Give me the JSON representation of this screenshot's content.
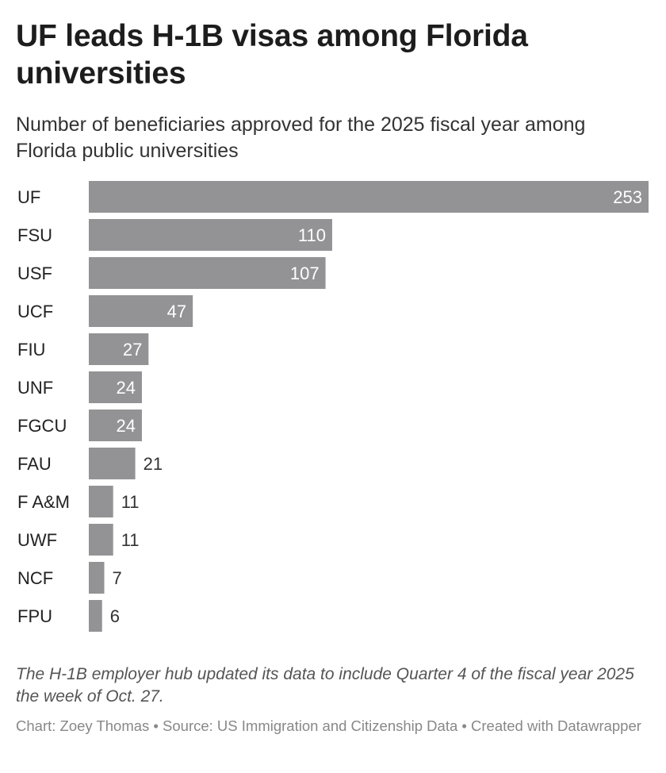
{
  "header": {
    "title": "UF leads H-1B visas among Florida universities",
    "subtitle": "Number of beneficiaries approved for the 2025 fiscal year among Florida public universities"
  },
  "chart_data": {
    "type": "bar",
    "orientation": "horizontal",
    "categories": [
      "UF",
      "FSU",
      "USF",
      "UCF",
      "FIU",
      "UNF",
      "FGCU",
      "FAU",
      "F A&M",
      "UWF",
      "NCF",
      "FPU"
    ],
    "values": [
      253,
      110,
      107,
      47,
      27,
      24,
      24,
      21,
      11,
      11,
      7,
      6
    ],
    "title": "UF leads H-1B visas among Florida universities",
    "subtitle": "Number of beneficiaries approved for the 2025 fiscal year among Florida public universities",
    "xlim": [
      0,
      253
    ],
    "grid": false,
    "legend": "none",
    "bar_color": "#939395",
    "label_inside_color": "#ffffff",
    "label_outside_color": "#333333"
  },
  "notes": {
    "note": "The H-1B employer hub updated its data to include Quarter 4 of the fiscal year 2025 the week of Oct. 27.",
    "footer": "Chart: Zoey Thomas • Source: US Immigration and Citizenship Data • Created with Datawrapper"
  }
}
